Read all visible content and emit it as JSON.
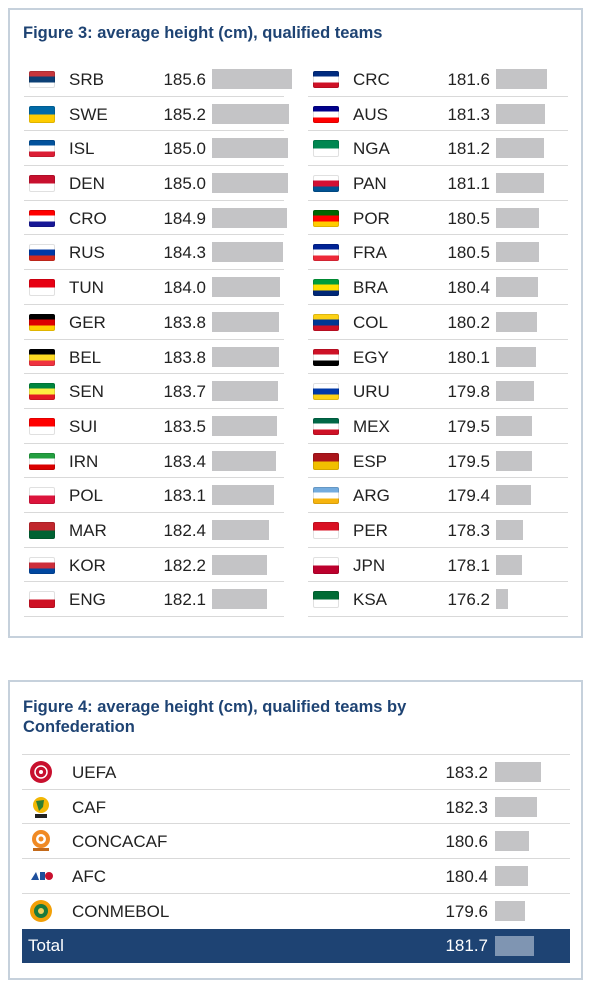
{
  "figure3": {
    "title": "Figure 3: average height (cm), qualified teams"
  },
  "figure4": {
    "title": "Figure 4: average height (cm), qualified teams by Confederation"
  },
  "chart_data": [
    {
      "type": "bar",
      "title": "Figure 3: average height (cm), qualified teams",
      "orientation": "horizontal",
      "categories": [
        "SRB",
        "SWE",
        "ISL",
        "DEN",
        "CRO",
        "RUS",
        "TUN",
        "GER",
        "BEL",
        "SEN",
        "SUI",
        "IRN",
        "POL",
        "MAR",
        "KOR",
        "ENG",
        "CRC",
        "AUS",
        "NGA",
        "PAN",
        "POR",
        "FRA",
        "BRA",
        "COL",
        "EGY",
        "URU",
        "MEX",
        "ESP",
        "ARG",
        "PER",
        "JPN",
        "KSA"
      ],
      "values": [
        185.6,
        185.2,
        185.0,
        185.0,
        184.9,
        184.3,
        184.0,
        183.8,
        183.8,
        183.7,
        183.5,
        183.4,
        183.1,
        182.4,
        182.2,
        182.1,
        181.6,
        181.3,
        181.2,
        181.1,
        180.5,
        180.5,
        180.4,
        180.2,
        180.1,
        179.8,
        179.5,
        179.5,
        179.4,
        178.3,
        178.1,
        176.2
      ],
      "value_labels": [
        "185.6",
        "185.2",
        "185.0",
        "185.0",
        "184.9",
        "184.3",
        "184.0",
        "183.8",
        "183.8",
        "183.7",
        "183.5",
        "183.4",
        "183.1",
        "182.4",
        "182.2",
        "182.1",
        "181.6",
        "181.3",
        "181.2",
        "181.1",
        "180.5",
        "180.5",
        "180.4",
        "180.2",
        "180.1",
        "179.8",
        "179.5",
        "179.5",
        "179.4",
        "178.3",
        "178.1",
        "176.2"
      ],
      "flag_colors": [
        [
          "#c6363c",
          "#0c4076",
          "#ffffff"
        ],
        [
          "#006aa7",
          "#fecc00"
        ],
        [
          "#02529c",
          "#ffffff",
          "#dc1e35"
        ],
        [
          "#c8102e",
          "#ffffff"
        ],
        [
          "#ff0000",
          "#ffffff",
          "#171796"
        ],
        [
          "#ffffff",
          "#0039a6",
          "#d52b1e"
        ],
        [
          "#e70013",
          "#ffffff"
        ],
        [
          "#000000",
          "#dd0000",
          "#ffce00"
        ],
        [
          "#000000",
          "#fdda24",
          "#ef3340"
        ],
        [
          "#00853f",
          "#fdef42",
          "#e31b23"
        ],
        [
          "#ff0000",
          "#ffffff"
        ],
        [
          "#239f40",
          "#ffffff",
          "#da0000"
        ],
        [
          "#ffffff",
          "#dc143c"
        ],
        [
          "#c1272d",
          "#006233"
        ],
        [
          "#ffffff",
          "#cd2e3a",
          "#0047a0"
        ],
        [
          "#ffffff",
          "#ce1124"
        ],
        [
          "#002b7f",
          "#ffffff",
          "#ce1126"
        ],
        [
          "#00008b",
          "#ffffff",
          "#ff0000"
        ],
        [
          "#008751",
          "#ffffff"
        ],
        [
          "#ffffff",
          "#d21034",
          "#005293"
        ],
        [
          "#006600",
          "#ff0000",
          "#ffcc00"
        ],
        [
          "#002395",
          "#ffffff",
          "#ed2939"
        ],
        [
          "#009c3b",
          "#ffdf00",
          "#002776"
        ],
        [
          "#fcd116",
          "#003893",
          "#ce1126"
        ],
        [
          "#ce1126",
          "#ffffff",
          "#000000"
        ],
        [
          "#ffffff",
          "#0038a8",
          "#fcd116"
        ],
        [
          "#006847",
          "#ffffff",
          "#ce1126"
        ],
        [
          "#aa151b",
          "#f1bf00"
        ],
        [
          "#74acdf",
          "#ffffff",
          "#f6b40e"
        ],
        [
          "#d91023",
          "#ffffff"
        ],
        [
          "#ffffff",
          "#bc002d"
        ],
        [
          "#006c35",
          "#ffffff"
        ]
      ]
    },
    {
      "type": "bar",
      "title": "Figure 4: average height (cm), qualified teams by Confederation",
      "orientation": "horizontal",
      "categories": [
        "UEFA",
        "CAF",
        "CONCACAF",
        "AFC",
        "CONMEBOL"
      ],
      "values": [
        183.2,
        182.3,
        180.6,
        180.4,
        179.6
      ],
      "value_labels": [
        "183.2",
        "182.3",
        "180.6",
        "180.4",
        "179.6"
      ],
      "icons": [
        "uefa-logo-icon",
        "caf-logo-icon",
        "concacaf-logo-icon",
        "afc-logo-icon",
        "conmebol-logo-icon"
      ],
      "total": {
        "label": "Total",
        "value": 181.7,
        "value_label": "181.7"
      }
    }
  ]
}
